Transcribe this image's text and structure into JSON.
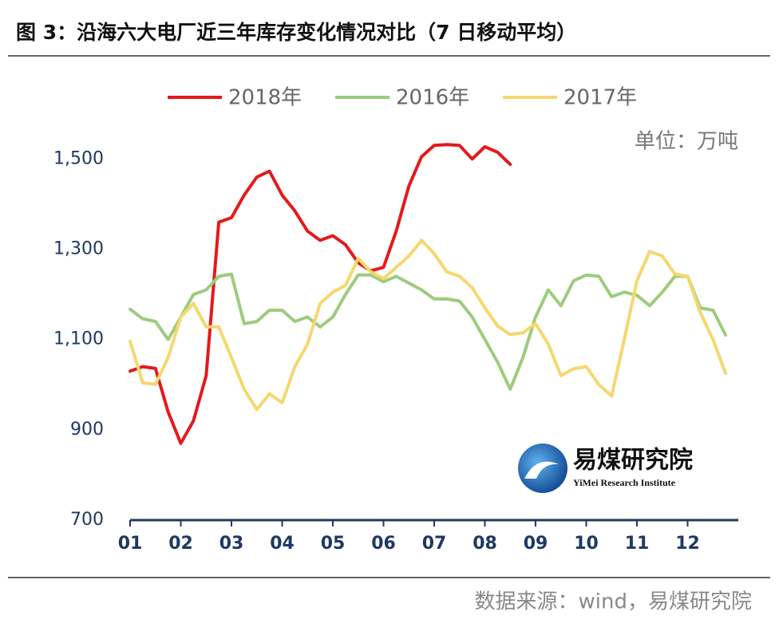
{
  "chart_data": {
    "type": "line",
    "title": "图 3：沿海六大电厂近三年库存变化情况对比（7 日移动平均）",
    "unit_label": "单位：万吨",
    "source": "数据来源：wind，易煤研究院",
    "logo_name": "易煤研究院",
    "logo_subtitle": "YiMei Research Institute",
    "x": [
      1,
      1.25,
      1.5,
      1.75,
      2,
      2.25,
      2.5,
      2.75,
      3,
      3.25,
      3.5,
      3.75,
      4,
      4.25,
      4.5,
      4.75,
      5,
      5.25,
      5.5,
      5.75,
      6,
      6.25,
      6.5,
      6.75,
      7,
      7.25,
      7.5,
      7.75,
      8,
      8.25,
      8.5,
      8.75,
      9,
      9.25,
      9.5,
      9.75,
      10,
      10.25,
      10.5,
      10.75,
      11,
      11.25,
      11.5,
      11.75,
      12,
      12.25,
      12.5,
      12.75,
      13
    ],
    "series": [
      {
        "name": "2018年",
        "color": "#e31a1c",
        "values": [
          1030,
          1040,
          1036,
          940,
          870,
          920,
          1020,
          1360,
          1370,
          1420,
          1460,
          1473,
          1420,
          1385,
          1340,
          1320,
          1330,
          1310,
          1270,
          1252,
          1260,
          1340,
          1440,
          1505,
          1530,
          1532,
          1530,
          1500,
          1527,
          1515,
          1488,
          null,
          null,
          null,
          null,
          null,
          null,
          null,
          null,
          null,
          null,
          null,
          null,
          null,
          null,
          null,
          null,
          null,
          null
        ]
      },
      {
        "name": "2016年",
        "color": "#9ccc7c",
        "values": [
          1167,
          1146,
          1140,
          1100,
          1150,
          1200,
          1210,
          1240,
          1245,
          1135,
          1140,
          1165,
          1165,
          1140,
          1150,
          1128,
          1150,
          1200,
          1243,
          1243,
          1228,
          1240,
          1225,
          1210,
          1190,
          1190,
          1185,
          1150,
          1100,
          1050,
          990,
          1060,
          1150,
          1210,
          1175,
          1230,
          1243,
          1240,
          1195,
          1205,
          1198,
          1175,
          1205,
          1240,
          1240,
          1170,
          1165,
          1110,
          null
        ]
      },
      {
        "name": "2017年",
        "color": "#f5d76e",
        "values": [
          1096,
          1004,
          1001,
          1060,
          1150,
          1180,
          1128,
          1128,
          1060,
          990,
          945,
          980,
          960,
          1040,
          1090,
          1180,
          1205,
          1220,
          1280,
          1250,
          1235,
          1260,
          1285,
          1320,
          1290,
          1250,
          1240,
          1215,
          1170,
          1130,
          1111,
          1115,
          1135,
          1090,
          1020,
          1035,
          1040,
          1000,
          975,
          1100,
          1230,
          1295,
          1285,
          1245,
          1240,
          1160,
          1100,
          1025,
          null
        ]
      }
    ],
    "xlim": [
      1,
      13
    ],
    "xticks": [
      {
        "value": 1,
        "label": "01"
      },
      {
        "value": 2,
        "label": "02"
      },
      {
        "value": 3,
        "label": "03"
      },
      {
        "value": 4,
        "label": "04"
      },
      {
        "value": 5,
        "label": "05"
      },
      {
        "value": 6,
        "label": "06"
      },
      {
        "value": 7,
        "label": "07"
      },
      {
        "value": 8,
        "label": "08"
      },
      {
        "value": 9,
        "label": "09"
      },
      {
        "value": 10,
        "label": "10"
      },
      {
        "value": 11,
        "label": "11"
      },
      {
        "value": 12,
        "label": "12"
      }
    ],
    "ylim": [
      700,
      1550
    ],
    "yticks": [
      700,
      900,
      {
        "value": 1100,
        "label": "1,100"
      },
      {
        "value": 1300,
        "label": "1,300"
      },
      {
        "value": 1500,
        "label": "1,500"
      }
    ],
    "grid": false
  }
}
